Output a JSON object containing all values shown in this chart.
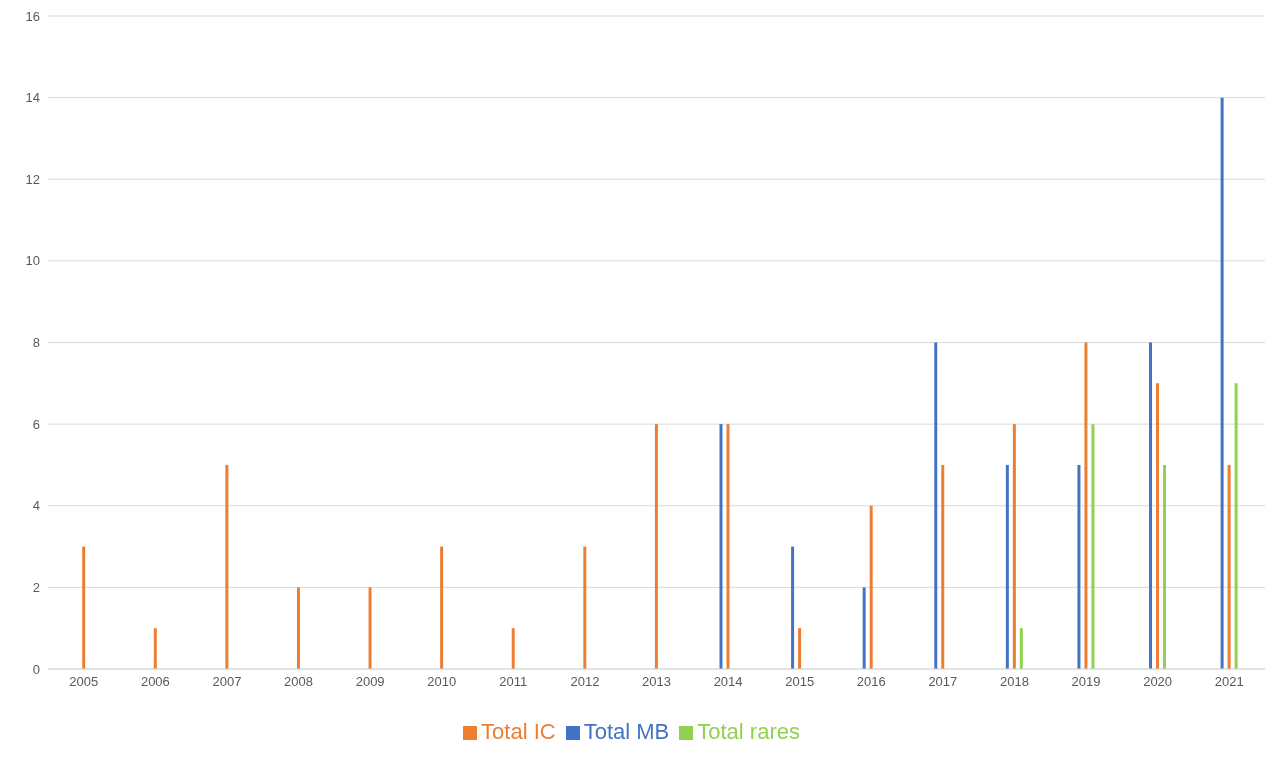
{
  "chart_data": {
    "type": "bar",
    "categories": [
      "2005",
      "2006",
      "2007",
      "2008",
      "2009",
      "2010",
      "2011",
      "2012",
      "2013",
      "2014",
      "2015",
      "2016",
      "2017",
      "2018",
      "2019",
      "2020",
      "2021"
    ],
    "series": [
      {
        "name": "Total MB",
        "color": "#4472c4",
        "values": [
          0,
          0,
          0,
          0,
          0,
          0,
          0,
          0,
          0,
          6,
          3,
          2,
          8,
          5,
          5,
          8,
          14
        ]
      },
      {
        "name": "Total IC",
        "color": "#ed7d31",
        "values": [
          3,
          1,
          5,
          2,
          2,
          3,
          1,
          3,
          6,
          6,
          1,
          4,
          5,
          6,
          8,
          7,
          5
        ]
      },
      {
        "name": "Total rares",
        "color": "#92d050",
        "values": [
          0,
          0,
          0,
          0,
          0,
          0,
          0,
          0,
          0,
          0,
          0,
          0,
          0,
          1,
          6,
          5,
          7
        ]
      }
    ],
    "ylim": [
      0,
      16
    ],
    "yticks": [
      0,
      2,
      4,
      6,
      8,
      10,
      12,
      14,
      16
    ],
    "grid": "y",
    "legend": "bottom"
  }
}
